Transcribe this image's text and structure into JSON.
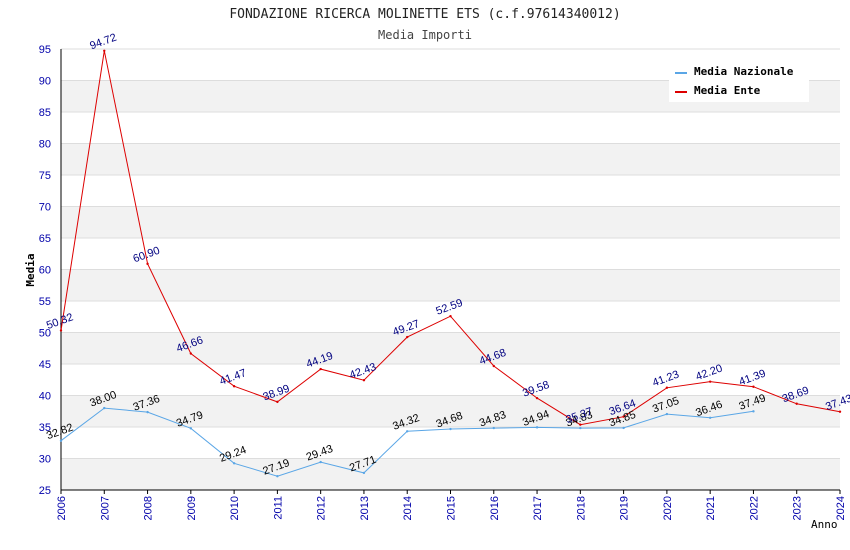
{
  "chart_data": {
    "type": "line",
    "title": "FONDAZIONE RICERCA MOLINETTE ETS (c.f.97614340012)",
    "subtitle": "Media Importi",
    "xlabel": "Anno",
    "ylabel": "Media",
    "ylim": [
      25,
      95
    ],
    "yticks": [
      "25",
      "30",
      "35",
      "40",
      "45",
      "50",
      "55",
      "60",
      "65",
      "70",
      "75",
      "80",
      "85",
      "90",
      "95"
    ],
    "x": [
      "2006",
      "2007",
      "2008",
      "2009",
      "2010",
      "2011",
      "2012",
      "2013",
      "2014",
      "2015",
      "2016",
      "2017",
      "2018",
      "2019",
      "2020",
      "2021",
      "2022",
      "2023",
      "2024"
    ],
    "grid": "horizontal banded",
    "legend_position": "top-right",
    "series": [
      {
        "name": "Media Nazionale",
        "color": "#5aa6e6",
        "values": [
          32.82,
          38.0,
          37.36,
          34.79,
          29.24,
          27.19,
          29.43,
          27.71,
          34.32,
          34.68,
          34.83,
          34.94,
          34.83,
          34.85,
          37.05,
          36.46,
          37.49,
          null,
          null
        ],
        "labels": [
          "32.82",
          "38.00",
          "37.36",
          "34.79",
          "29.24",
          "27.19",
          "29.43",
          "27.71",
          "34.32",
          "34.68",
          "34.83",
          "34.94",
          "34.83",
          "34.85",
          "37.05",
          "36.46",
          "37.49",
          "",
          ""
        ]
      },
      {
        "name": "Media Ente",
        "color": "#dd0000",
        "values": [
          50.32,
          94.72,
          60.9,
          46.66,
          41.47,
          38.99,
          44.19,
          42.43,
          49.27,
          52.59,
          44.68,
          39.58,
          35.37,
          36.64,
          41.23,
          42.2,
          41.39,
          38.69,
          37.43
        ],
        "labels": [
          "50.32",
          "94.72",
          "60.90",
          "46.66",
          "41.47",
          "38.99",
          "44.19",
          "42.43",
          "49.27",
          "52.59",
          "44.68",
          "39.58",
          "35.37",
          "36.64",
          "41.23",
          "42.20",
          "41.39",
          "38.69",
          "37.43"
        ]
      }
    ]
  }
}
